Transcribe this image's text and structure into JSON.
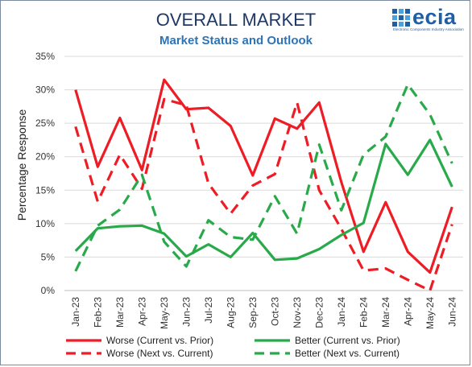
{
  "header": {
    "title": "OVERALL MARKET",
    "subtitle": "Market Status and Outlook",
    "logo_text": "ecia",
    "logo_tagline": "Electronic Components Industry Association"
  },
  "colors": {
    "worse": "#ee1c24",
    "better": "#29aa4a",
    "title": "#1f3864",
    "subtitle": "#2e74b5",
    "logo": "#1f5fa8"
  },
  "chart_data": {
    "type": "line",
    "title": "OVERALL MARKET",
    "subtitle": "Market Status and Outlook",
    "xlabel": "",
    "ylabel": "Percentage Response",
    "ylim": [
      0,
      35
    ],
    "yticks": [
      "0%",
      "5%",
      "10%",
      "15%",
      "20%",
      "25%",
      "30%",
      "35%"
    ],
    "grid": true,
    "legend_position": "bottom",
    "categories": [
      "Jan-23",
      "Feb-23",
      "Mar-23",
      "Apr-23",
      "May-23",
      "Jun-23",
      "Jul-23",
      "Aug-23",
      "Sep-23",
      "Oct-23",
      "Nov-23",
      "Dec-23",
      "Jan-24",
      "Feb-24",
      "Mar-24",
      "Apr-24",
      "May-24",
      "Jun-24"
    ],
    "series": [
      {
        "name": "Worse (Current vs. Prior)",
        "color": "#ee1c24",
        "dashed": false,
        "values": [
          30.0,
          18.5,
          25.8,
          18.0,
          31.5,
          27.1,
          27.3,
          24.6,
          17.2,
          25.7,
          24.2,
          28.1,
          16.2,
          5.8,
          13.2,
          5.8,
          2.7,
          12.5
        ]
      },
      {
        "name": "Worse (Next vs. Current)",
        "color": "#ee1c24",
        "dashed": true,
        "values": [
          24.5,
          13.3,
          20.3,
          15.2,
          28.6,
          27.7,
          16.0,
          11.5,
          15.7,
          17.4,
          28.1,
          15.0,
          9.2,
          3.0,
          3.3,
          1.6,
          0.0,
          9.9
        ]
      },
      {
        "name": "Better (Current vs. Prior)",
        "color": "#29aa4a",
        "dashed": false,
        "values": [
          5.9,
          9.3,
          9.6,
          9.7,
          8.5,
          5.1,
          6.9,
          5.0,
          8.6,
          4.6,
          4.8,
          6.2,
          8.3,
          10.1,
          21.9,
          17.3,
          22.5,
          15.5
        ]
      },
      {
        "name": "Better (Next vs. Current)",
        "color": "#29aa4a",
        "dashed": true,
        "values": [
          2.9,
          9.7,
          12.1,
          17.3,
          7.3,
          3.6,
          10.5,
          8.0,
          7.6,
          14.1,
          8.5,
          21.8,
          12.0,
          20.3,
          23.0,
          30.8,
          26.3,
          19.0
        ]
      }
    ]
  }
}
